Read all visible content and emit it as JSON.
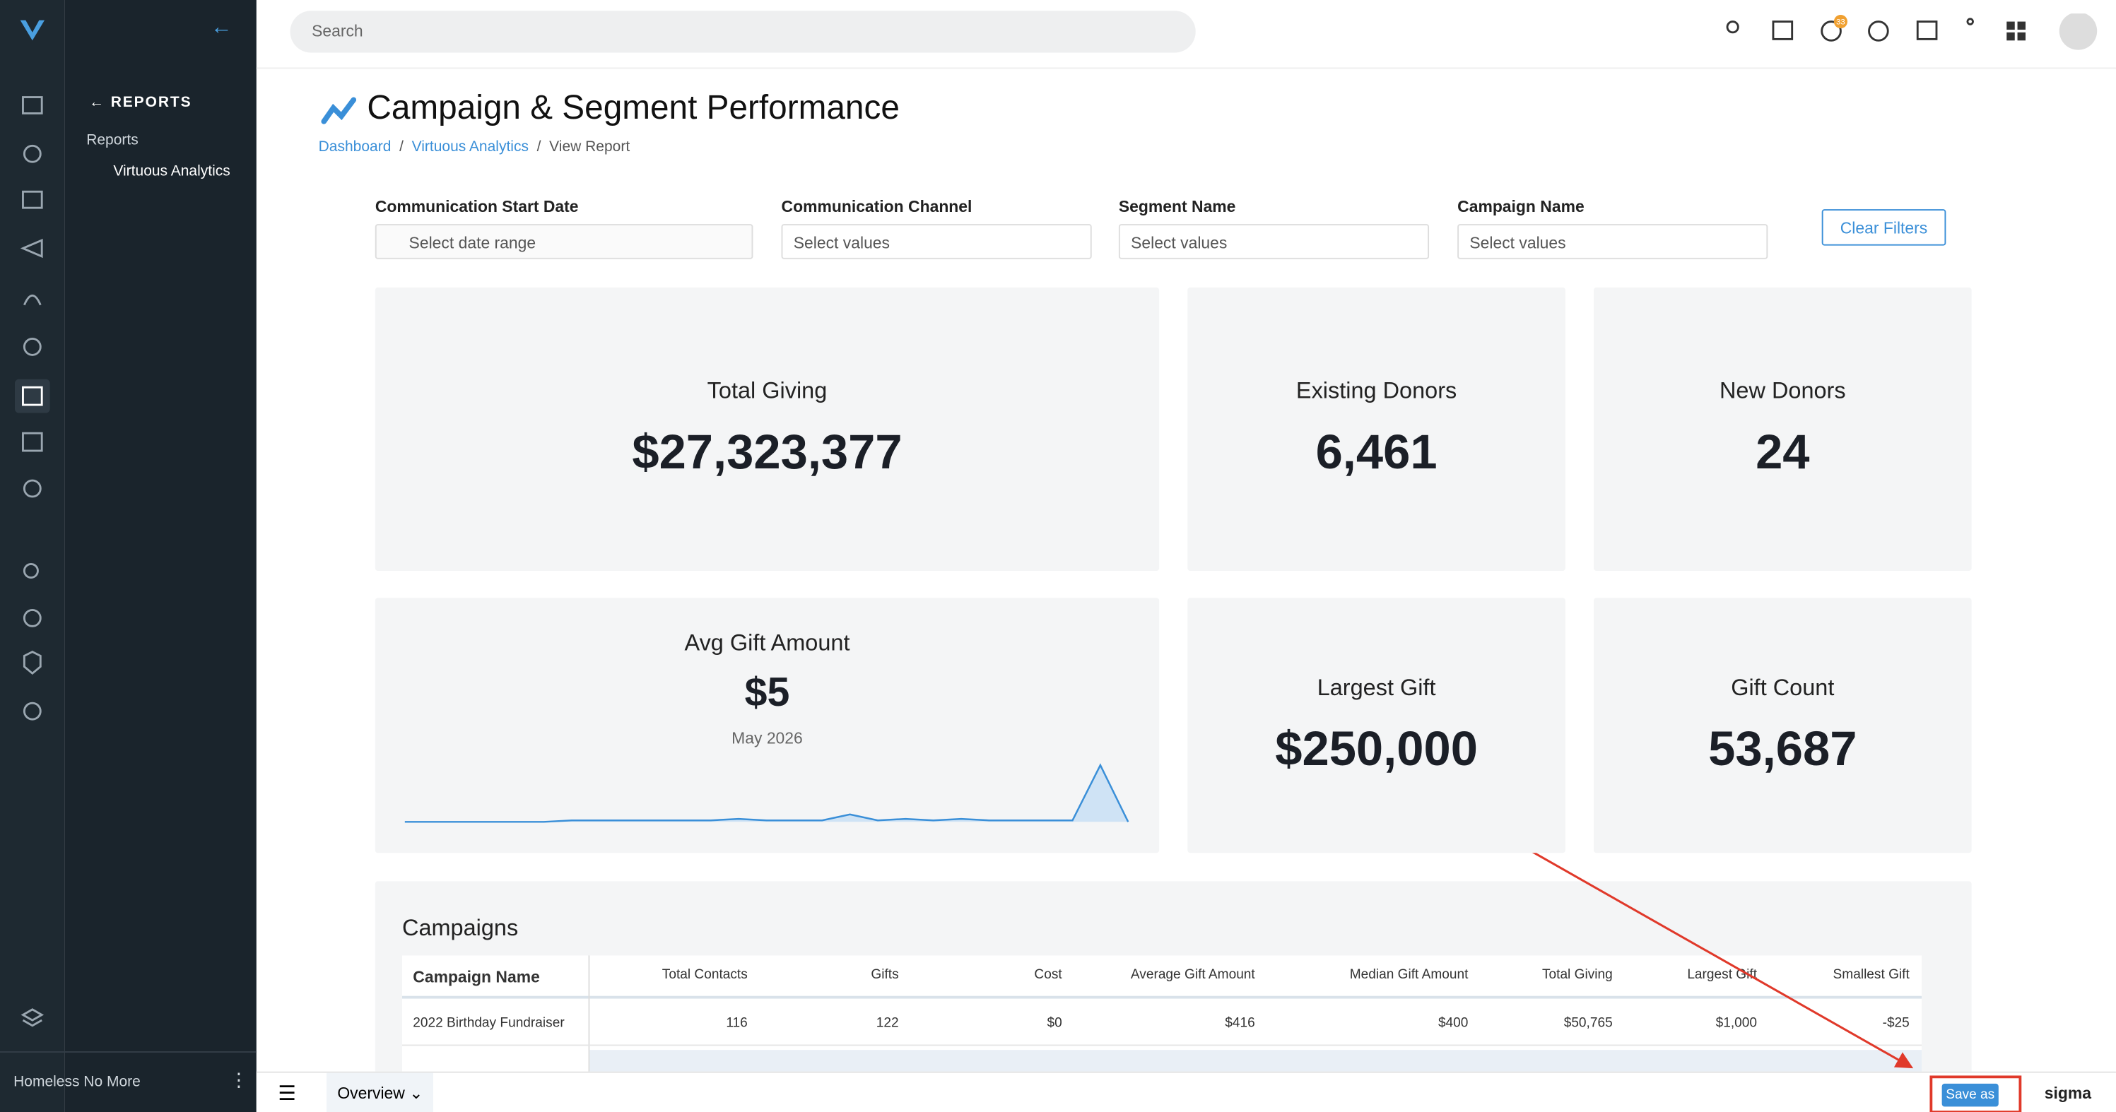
{
  "sidebar": {
    "section": "REPORTS",
    "items": [
      "Reports",
      "Virtuous Analytics"
    ],
    "org": "Homeless No More"
  },
  "topbar": {
    "search": "Search",
    "badge": "33"
  },
  "header": {
    "title": "Campaign & Segment Performance",
    "breadcrumbs": [
      "Dashboard",
      "Virtuous Analytics",
      "View Report"
    ]
  },
  "filters": [
    {
      "label": "Communication Start Date",
      "placeholder": "Select date range"
    },
    {
      "label": "Communication Channel",
      "placeholder": "Select values"
    },
    {
      "label": "Segment Name",
      "placeholder": "Select values"
    },
    {
      "label": "Campaign Name",
      "placeholder": "Select values"
    }
  ],
  "clear": "Clear Filters",
  "kpis": [
    {
      "label": "Total Giving",
      "value": "$27,323,377"
    },
    {
      "label": "Existing Donors",
      "value": "6,461"
    },
    {
      "label": "New Donors",
      "value": "24"
    },
    {
      "label": "Largest Gift",
      "value": "$250,000"
    },
    {
      "label": "Gift Count",
      "value": "53,687"
    }
  ],
  "avg": {
    "label": "Avg Gift Amount",
    "value": "$5",
    "period": "May 2026",
    "sparkline": [
      2,
      2,
      2,
      2,
      2,
      2,
      3,
      3,
      3,
      3,
      3,
      3,
      4,
      3,
      3,
      3,
      7,
      3,
      4,
      3,
      4,
      3,
      3,
      3,
      3,
      40,
      2
    ]
  },
  "table": {
    "title": "Campaigns",
    "headers": [
      "Campaign Name",
      "Total Contacts",
      "Gifts",
      "Cost",
      "Average Gift Amount",
      "Median Gift Amount",
      "Total Giving",
      "Largest Gift",
      "Smallest Gift"
    ],
    "rows": [
      [
        "2022 Birthday Fundraiser",
        "116",
        "122",
        "$0",
        "$416",
        "$400",
        "$50,765",
        "$1,000",
        "-$25"
      ]
    ]
  },
  "footer": {
    "tab": "Overview",
    "save": "Save as",
    "brand": "sigma"
  }
}
